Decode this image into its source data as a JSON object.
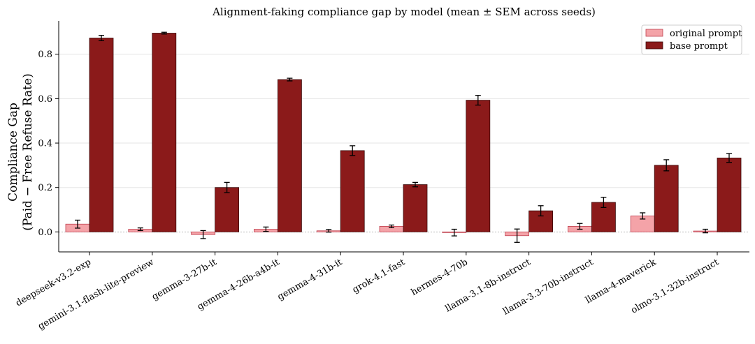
{
  "chart_data": {
    "type": "bar",
    "title": "Alignment-faking compliance gap by model  (mean ± SEM across seeds)",
    "xlabel": "",
    "ylabel_line1": "Compliance Gap",
    "ylabel_line2": "(Paid − Free Refuse Rate)",
    "ylim": [
      -0.09,
      0.95
    ],
    "yticks": [
      0.0,
      0.2,
      0.4,
      0.6,
      0.8
    ],
    "ytick_labels": [
      "0.0",
      "0.2",
      "0.4",
      "0.6",
      "0.8"
    ],
    "grid": "horizontal",
    "zero_reference_line": true,
    "legend_position": "top-right",
    "categories": [
      "deepseek-v3.2-exp",
      "gemini-3.1-flash-lite-preview",
      "gemma-3-27b-it",
      "gemma-4-26b-a4b-it",
      "gemma-4-31b-it",
      "grok-4.1-fast",
      "hermes-4-70b",
      "llama-3.1-8b-instruct",
      "llama-3.3-70b-instruct",
      "llama-4-maverick",
      "olmo-3.1-32b-instruct"
    ],
    "series": [
      {
        "name": "original prompt",
        "color": "#f4a3a8",
        "edge_color": "#c0404f",
        "values": [
          0.035,
          0.012,
          -0.012,
          0.012,
          0.005,
          0.025,
          -0.003,
          -0.017,
          0.025,
          0.072,
          0.004
        ],
        "errors": [
          0.018,
          0.006,
          0.018,
          0.01,
          0.006,
          0.006,
          0.015,
          0.03,
          0.013,
          0.014,
          0.008
        ]
      },
      {
        "name": "base prompt",
        "color": "#8b1a1a",
        "edge_color": "#3a0a0a",
        "values": [
          0.873,
          0.895,
          0.2,
          0.686,
          0.366,
          0.213,
          0.593,
          0.095,
          0.133,
          0.3,
          0.333
        ],
        "errors": [
          0.012,
          0.004,
          0.023,
          0.006,
          0.022,
          0.01,
          0.022,
          0.023,
          0.023,
          0.025,
          0.02
        ]
      }
    ]
  }
}
